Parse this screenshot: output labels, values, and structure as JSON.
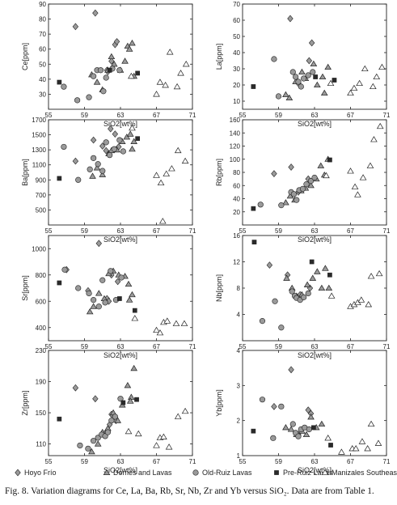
{
  "caption": "Fig. 8. Variation diagrams for Ce, La, Ba, Rb, Sr, Nb, Zr and Yb versus SiO₂. Data are from Table 1.",
  "legend": [
    {
      "name": "Hoyo Frío",
      "marker": "diamond"
    },
    {
      "name": "Domes and Lavas",
      "marker": "triangle"
    },
    {
      "name": "Old-Ruiz Lavas",
      "marker": "circle"
    },
    {
      "name": "Pre-Ruiz Lavas",
      "marker": "square"
    },
    {
      "name": "Manizales Southeast",
      "marker": "open-triangle"
    }
  ],
  "colors": {
    "marker_fill": "#9a9a9a",
    "marker_stroke": "#222222",
    "square_fill": "#2a2a2a",
    "axis": "#222222"
  },
  "chart_data": [
    {
      "type": "scatter",
      "ylabel": "Ce[ppm]",
      "xlabel": "SiO2[wt%]",
      "xlim": [
        55,
        71
      ],
      "ylim": [
        20,
        90
      ],
      "xticks": [
        55,
        59,
        63,
        67,
        71
      ],
      "yticks": [
        30,
        40,
        50,
        60,
        70,
        80,
        90
      ],
      "series": [
        {
          "name": "Hoyo Frío",
          "marker": "diamond",
          "x": [
            58.0,
            60.2,
            61.5,
            62.0,
            62.4,
            62.6,
            61.6
          ],
          "y": [
            75,
            84,
            46,
            52,
            63,
            65,
            45
          ]
        },
        {
          "name": "Domes and Lavas",
          "marker": "triangle",
          "x": [
            59.8,
            60.4,
            61.0,
            61.6,
            62.0,
            62.3,
            63.0,
            63.5,
            63.8,
            64.0,
            64.3,
            64.5
          ],
          "y": [
            43,
            38,
            33,
            46,
            55,
            50,
            46,
            52,
            62,
            60,
            64,
            42
          ]
        },
        {
          "name": "Old-Ruiz Lavas",
          "marker": "circle",
          "x": [
            56.7,
            58.2,
            59.5,
            60.0,
            60.4,
            60.8,
            61.1,
            61.4,
            62.1,
            62.9
          ],
          "y": [
            35,
            26,
            28,
            42,
            46,
            46,
            32,
            41,
            47,
            46
          ]
        },
        {
          "name": "Pre-Ruiz Lavas",
          "marker": "square",
          "x": [
            56.2,
            61.8,
            64.9
          ],
          "y": [
            38,
            46,
            44
          ]
        },
        {
          "name": "Manizales Southeast",
          "marker": "open-triangle",
          "x": [
            64.2,
            67.0,
            67.4,
            68.0,
            68.5,
            69.3,
            69.7,
            70.3
          ],
          "y": [
            42,
            30,
            38,
            36,
            58,
            35,
            44,
            50
          ]
        }
      ]
    },
    {
      "type": "scatter",
      "ylabel": "La[ppm]",
      "xlabel": "SiO2[wt%]",
      "xlim": [
        55,
        71
      ],
      "ylim": [
        5,
        70
      ],
      "xticks": [
        55,
        59,
        63,
        67,
        71
      ],
      "yticks": [
        10,
        20,
        30,
        40,
        50,
        60,
        70
      ],
      "series": [
        {
          "name": "Hoyo Frío",
          "marker": "diamond",
          "x": [
            60.3,
            61.2,
            62.4,
            62.7
          ],
          "y": [
            61,
            21,
            35,
            46
          ]
        },
        {
          "name": "Domes and Lavas",
          "marker": "triangle",
          "x": [
            59.8,
            60.2,
            60.9,
            61.6,
            62.0,
            62.9,
            63.3,
            63.9,
            64.1,
            64.5
          ],
          "y": [
            14,
            12,
            22,
            28,
            24,
            33,
            20,
            25,
            15,
            31
          ]
        },
        {
          "name": "Old-Ruiz Lavas",
          "marker": "circle",
          "x": [
            58.5,
            59.0,
            60.6,
            60.9,
            61.2,
            61.5,
            61.8,
            62.3,
            62.8
          ],
          "y": [
            36,
            13,
            28,
            25,
            22,
            19,
            24,
            26,
            28
          ]
        },
        {
          "name": "Pre-Ruiz Lavas",
          "marker": "square",
          "x": [
            56.2,
            63.1,
            65.2
          ],
          "y": [
            19,
            25,
            23
          ]
        },
        {
          "name": "Manizales Southeast",
          "marker": "open-triangle",
          "x": [
            64.8,
            67.0,
            67.4,
            68.0,
            68.6,
            69.5,
            69.9,
            70.5
          ],
          "y": [
            21,
            15,
            18,
            21,
            30,
            19,
            25,
            31
          ]
        }
      ]
    },
    {
      "type": "scatter",
      "ylabel": "Ba[ppm]",
      "xlabel": "SiO2[wt%]",
      "xlim": [
        55,
        71
      ],
      "ylim": [
        300,
        1700
      ],
      "xticks": [
        55,
        59,
        63,
        67,
        71
      ],
      "yticks": [
        500,
        700,
        900,
        1100,
        1300,
        1500,
        1700
      ],
      "series": [
        {
          "name": "Hoyo Frío",
          "marker": "diamond",
          "x": [
            58.0,
            60.0,
            61.0,
            61.9,
            62.4,
            62.8,
            61.4
          ],
          "y": [
            1150,
            1430,
            1350,
            1580,
            1510,
            1340,
            1290
          ]
        },
        {
          "name": "Domes and Lavas",
          "marker": "triangle",
          "x": [
            59.9,
            60.4,
            61.0,
            61.7,
            62.0,
            62.6,
            63.2,
            63.7,
            64.1,
            64.5,
            64.3
          ],
          "y": [
            950,
            1060,
            970,
            1250,
            1290,
            1300,
            1410,
            1470,
            1510,
            1410,
            1310
          ]
        },
        {
          "name": "Old-Ruiz Lavas",
          "marker": "circle",
          "x": [
            56.7,
            58.3,
            59.6,
            60.0,
            60.5,
            61.0,
            61.4,
            61.8,
            62.3,
            62.9,
            63.3
          ],
          "y": [
            1340,
            900,
            1040,
            1190,
            1110,
            1020,
            1400,
            1230,
            1310,
            1430,
            1280
          ]
        },
        {
          "name": "Pre-Ruiz Lavas",
          "marker": "square",
          "x": [
            56.2,
            64.9
          ],
          "y": [
            920,
            1450
          ]
        },
        {
          "name": "Manizales Southeast",
          "marker": "open-triangle",
          "x": [
            64.3,
            67.0,
            67.5,
            68.1,
            68.7,
            69.4,
            70.2,
            67.7
          ],
          "y": [
            1590,
            960,
            860,
            980,
            1050,
            1290,
            1150,
            350
          ]
        }
      ]
    },
    {
      "type": "scatter",
      "ylabel": "Rb[ppm]",
      "xlabel": "SiO2[wt%]",
      "xlim": [
        55,
        71
      ],
      "ylim": [
        0,
        160
      ],
      "xticks": [
        55,
        59,
        63,
        67,
        71
      ],
      "yticks": [
        20,
        40,
        60,
        80,
        100,
        120,
        140,
        160
      ],
      "series": [
        {
          "name": "Hoyo Frío",
          "marker": "diamond",
          "x": [
            58.5,
            60.4,
            61.2,
            62.3
          ],
          "y": [
            78,
            88,
            50,
            70
          ]
        },
        {
          "name": "Domes and Lavas",
          "marker": "triangle",
          "x": [
            59.8,
            60.3,
            60.8,
            61.5,
            62.0,
            62.6,
            63.2,
            63.7,
            64.1,
            64.5
          ],
          "y": [
            34,
            44,
            38,
            52,
            56,
            60,
            70,
            90,
            76,
            100
          ]
        },
        {
          "name": "Old-Ruiz Lavas",
          "marker": "circle",
          "x": [
            57.0,
            59.3,
            60.4,
            60.7,
            61.0,
            61.3,
            61.7,
            62.1,
            62.6,
            63.0
          ],
          "y": [
            31,
            30,
            50,
            47,
            38,
            53,
            55,
            62,
            67,
            72
          ]
        },
        {
          "name": "Pre-Ruiz Lavas",
          "marker": "square",
          "x": [
            56.2,
            64.7
          ],
          "y": [
            25,
            99
          ]
        },
        {
          "name": "Manizales Southeast",
          "marker": "open-triangle",
          "x": [
            64.3,
            67.0,
            67.5,
            67.8,
            68.4,
            69.2,
            69.6,
            70.3
          ],
          "y": [
            75,
            82,
            58,
            46,
            72,
            90,
            130,
            150
          ]
        }
      ]
    },
    {
      "type": "scatter",
      "ylabel": "Sr[ppm]",
      "xlabel": "SiO2[wt%]",
      "xlim": [
        55,
        71
      ],
      "ylim": [
        300,
        1100
      ],
      "xticks": [
        55,
        59,
        63,
        67,
        71
      ],
      "yticks": [
        400,
        600,
        800,
        1000
      ],
      "series": [
        {
          "name": "Hoyo Frío",
          "marker": "diamond",
          "x": [
            57.0,
            59.4,
            60.6,
            61.5,
            62.0,
            62.7,
            61.7
          ],
          "y": [
            840,
            680,
            1040,
            620,
            800,
            750,
            600
          ]
        },
        {
          "name": "Domes and Lavas",
          "marker": "triangle",
          "x": [
            59.6,
            60.0,
            60.6,
            61.2,
            61.7,
            62.2,
            62.8,
            63.5,
            63.9,
            64.3,
            64.0
          ],
          "y": [
            520,
            560,
            660,
            620,
            810,
            830,
            800,
            790,
            730,
            650,
            610
          ]
        },
        {
          "name": "Old-Ruiz Lavas",
          "marker": "circle",
          "x": [
            56.8,
            58.3,
            59.5,
            60.0,
            60.6,
            61.0,
            61.3,
            61.9,
            62.5,
            63.1
          ],
          "y": [
            840,
            700,
            660,
            610,
            560,
            760,
            590,
            830,
            610,
            780
          ]
        },
        {
          "name": "Pre-Ruiz Lavas",
          "marker": "square",
          "x": [
            56.2,
            62.9,
            64.6
          ],
          "y": [
            740,
            620,
            530
          ]
        },
        {
          "name": "Manizales Southeast",
          "marker": "open-triangle",
          "x": [
            64.6,
            67.0,
            67.4,
            67.8,
            68.2,
            69.2,
            70.1
          ],
          "y": [
            470,
            380,
            360,
            440,
            450,
            430,
            430
          ]
        }
      ]
    },
    {
      "type": "scatter",
      "ylabel": "Nb[ppm]",
      "xlabel": "SiO2[wt%]",
      "xlim": [
        55,
        71
      ],
      "ylim": [
        0,
        16
      ],
      "xticks": [
        55,
        59,
        63,
        67,
        71
      ],
      "yticks": [
        4,
        8,
        12,
        16
      ],
      "series": [
        {
          "name": "Hoyo Frío",
          "marker": "diamond",
          "x": [
            58.0,
            60.0,
            61.4,
            62.5
          ],
          "y": [
            11.5,
            10.0,
            7.0,
            8.0
          ]
        },
        {
          "name": "Domes and Lavas",
          "marker": "triangle",
          "x": [
            59.9,
            60.5,
            61.0,
            61.6,
            62.2,
            62.8,
            63.3,
            63.8,
            64.2,
            64.6
          ],
          "y": [
            9.5,
            8.0,
            6.8,
            7.0,
            8.5,
            9.5,
            10.5,
            8.0,
            11.0,
            8.0
          ]
        },
        {
          "name": "Old-Ruiz Lavas",
          "marker": "circle",
          "x": [
            57.2,
            58.6,
            59.3,
            60.5,
            60.8,
            61.0,
            61.4,
            61.8,
            62.3
          ],
          "y": [
            3.0,
            6.0,
            2.0,
            7.5,
            6.8,
            6.5,
            6.2,
            6.6,
            7.2
          ]
        },
        {
          "name": "Pre-Ruiz Lavas",
          "marker": "square",
          "x": [
            56.3,
            62.7,
            64.7
          ],
          "y": [
            15.0,
            12.0,
            10.0
          ]
        },
        {
          "name": "Manizales Southeast",
          "marker": "open-triangle",
          "x": [
            64.9,
            67.0,
            67.4,
            67.8,
            68.2,
            69.0,
            69.3,
            70.2
          ],
          "y": [
            6.8,
            5.2,
            5.5,
            5.8,
            6.2,
            5.5,
            9.8,
            10.2
          ]
        }
      ]
    },
    {
      "type": "scatter",
      "ylabel": "Zr[ppm]",
      "xlabel": "SiO2[wt%]",
      "xlim": [
        55,
        71
      ],
      "ylim": [
        95,
        230
      ],
      "xticks": [
        55,
        59,
        63,
        67,
        71
      ],
      "yticks": [
        110,
        150,
        190,
        230
      ],
      "series": [
        {
          "name": "Hoyo Frío",
          "marker": "diamond",
          "x": [
            58.0,
            60.2,
            61.4,
            62.0,
            62.5,
            61.8
          ],
          "y": [
            182,
            168,
            125,
            148,
            140,
            135
          ]
        },
        {
          "name": "Domes and Lavas",
          "marker": "triangle",
          "x": [
            59.8,
            60.5,
            61.0,
            61.6,
            62.2,
            62.7,
            63.2,
            63.8,
            64.2,
            64.5,
            64.1
          ],
          "y": [
            100,
            110,
            125,
            130,
            150,
            140,
            160,
            185,
            170,
            207,
            165
          ]
        },
        {
          "name": "Old-Ruiz Lavas",
          "marker": "circle",
          "x": [
            58.5,
            59.4,
            60.0,
            60.5,
            60.9,
            61.3,
            61.6,
            62.0,
            62.4,
            63.0
          ],
          "y": [
            108,
            104,
            114,
            118,
            122,
            120,
            125,
            140,
            145,
            168
          ]
        },
        {
          "name": "Pre-Ruiz Lavas",
          "marker": "square",
          "x": [
            56.2,
            64.8,
            63.3
          ],
          "y": [
            142,
            167,
            163
          ]
        },
        {
          "name": "Manizales Southeast",
          "marker": "open-triangle",
          "x": [
            63.9,
            65.0,
            67.0,
            67.4,
            67.8,
            68.4,
            69.4,
            70.2
          ],
          "y": [
            126,
            123,
            108,
            118,
            119,
            106,
            145,
            152
          ]
        }
      ]
    },
    {
      "type": "scatter",
      "ylabel": "Yb[ppm]",
      "xlabel": "SiO2[wt%]",
      "xlim": [
        55,
        71
      ],
      "ylim": [
        1.0,
        4.0
      ],
      "xticks": [
        55,
        59,
        63,
        67,
        71
      ],
      "yticks": [
        1.0,
        2.0,
        3.0,
        4.0
      ],
      "series": [
        {
          "name": "Hoyo Frío",
          "marker": "diamond",
          "x": [
            58.5,
            60.4,
            61.2,
            62.3,
            62.6
          ],
          "y": [
            2.4,
            3.45,
            1.6,
            2.3,
            2.2
          ]
        },
        {
          "name": "Domes and Lavas",
          "marker": "triangle",
          "x": [
            59.8,
            60.4,
            61.0,
            61.6,
            62.1,
            62.6,
            63.2,
            63.8
          ],
          "y": [
            1.8,
            1.75,
            1.6,
            1.7,
            1.6,
            2.1,
            1.8,
            1.9
          ]
        },
        {
          "name": "Old-Ruiz Lavas",
          "marker": "circle",
          "x": [
            57.2,
            58.4,
            59.3,
            60.6,
            60.9,
            61.2,
            61.5,
            61.9,
            62.4
          ],
          "y": [
            2.6,
            1.5,
            2.4,
            1.9,
            1.65,
            1.55,
            1.75,
            1.8,
            1.75
          ]
        },
        {
          "name": "Pre-Ruiz Lavas",
          "marker": "square",
          "x": [
            56.2,
            62.9,
            64.8
          ],
          "y": [
            1.7,
            1.8,
            1.3
          ]
        },
        {
          "name": "Manizales Southeast",
          "marker": "open-triangle",
          "x": [
            64.5,
            66.0,
            67.2,
            67.6,
            68.3,
            68.9,
            69.3,
            70.1
          ],
          "y": [
            1.5,
            1.1,
            1.2,
            1.2,
            1.4,
            1.2,
            1.9,
            1.35
          ]
        }
      ]
    }
  ]
}
